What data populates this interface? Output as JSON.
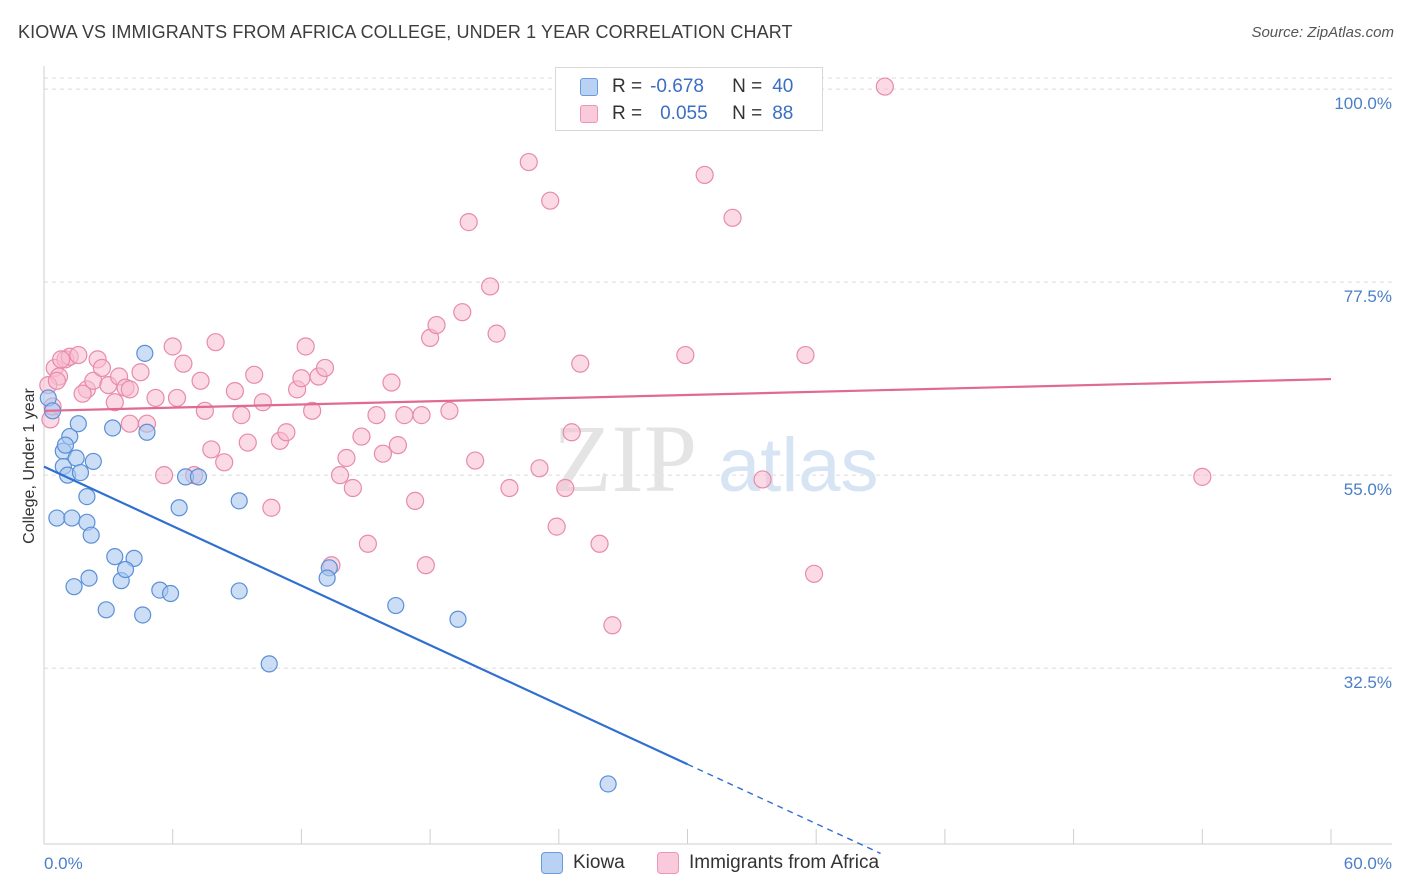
{
  "title": "KIOWA VS IMMIGRANTS FROM AFRICA COLLEGE, UNDER 1 YEAR CORRELATION CHART",
  "source": "Source: ZipAtlas.com",
  "legend": {
    "rows": [
      {
        "r_label": "R =",
        "r_value": "-0.678",
        "n_label": "N =",
        "n_value": "40"
      },
      {
        "r_label": "R =",
        "r_value": "0.055",
        "n_label": "N =",
        "n_value": "88"
      }
    ]
  },
  "bottom_legend": [
    {
      "label": "Kiowa"
    },
    {
      "label": "Immigrants from Africa"
    }
  ],
  "colors": {
    "kiowa_fill": "#a9c8f0",
    "kiowa_stroke": "#5b8fd6",
    "kiowa_line": "#2f6fd0",
    "africa_fill": "#f7bcd0",
    "africa_stroke": "#e88aab",
    "africa_line": "#e06a94",
    "axis_label": "#4a7fc7"
  },
  "chart_data": {
    "type": "scatter",
    "title": "KIOWA VS IMMIGRANTS FROM AFRICA COLLEGE, UNDER 1 YEAR CORRELATION CHART",
    "xlabel": "",
    "ylabel": "College, Under 1 year",
    "xlim": [
      0,
      60
    ],
    "ylim": [
      12,
      102
    ],
    "x_tick_labels": [
      "0.0%",
      "60.0%"
    ],
    "y_ticks": [
      32.5,
      55.0,
      77.5,
      100.0
    ],
    "y_tick_labels": [
      "32.5%",
      "55.0%",
      "77.5%",
      "100.0%"
    ],
    "grid": true,
    "watermark": "ZIPatlas",
    "series": [
      {
        "name": "Kiowa",
        "R": -0.678,
        "N": 40,
        "trend": {
          "x0": 0,
          "y0": 56.0,
          "x1": 30,
          "y1": 21.3,
          "dash_to_x": 39,
          "dash_to_y": 10.9
        },
        "points": [
          [
            0.2,
            64.0
          ],
          [
            0.4,
            62.5
          ],
          [
            0.9,
            57.8
          ],
          [
            0.9,
            56.0
          ],
          [
            1.1,
            55.0
          ],
          [
            1.2,
            59.5
          ],
          [
            1.5,
            57.0
          ],
          [
            1.6,
            61.0
          ],
          [
            1.7,
            55.3
          ],
          [
            2.0,
            52.5
          ],
          [
            2.3,
            56.6
          ],
          [
            0.6,
            50.0
          ],
          [
            1.3,
            50.0
          ],
          [
            2.0,
            49.5
          ],
          [
            2.2,
            48.0
          ],
          [
            3.2,
            60.5
          ],
          [
            3.3,
            45.5
          ],
          [
            4.2,
            45.3
          ],
          [
            4.8,
            60.0
          ],
          [
            4.7,
            69.2
          ],
          [
            1.4,
            42.0
          ],
          [
            2.1,
            43.0
          ],
          [
            3.6,
            42.7
          ],
          [
            5.4,
            41.6
          ],
          [
            5.9,
            41.2
          ],
          [
            6.6,
            54.8
          ],
          [
            7.2,
            54.8
          ],
          [
            6.3,
            51.2
          ],
          [
            9.1,
            52.0
          ],
          [
            9.1,
            41.5
          ],
          [
            2.9,
            39.3
          ],
          [
            4.6,
            38.7
          ],
          [
            10.5,
            33.0
          ],
          [
            13.3,
            44.2
          ],
          [
            13.2,
            43.0
          ],
          [
            16.4,
            39.8
          ],
          [
            19.3,
            38.2
          ],
          [
            26.3,
            19.0
          ],
          [
            1.0,
            58.5
          ],
          [
            3.8,
            44.0
          ]
        ]
      },
      {
        "name": "Immigrants from Africa",
        "R": 0.055,
        "N": 88,
        "trend": {
          "x0": 0,
          "y0": 62.5,
          "x1": 60,
          "y1": 66.2
        },
        "points": [
          [
            0.3,
            61.5
          ],
          [
            0.5,
            67.5
          ],
          [
            0.7,
            66.5
          ],
          [
            1.0,
            68.5
          ],
          [
            1.2,
            68.8
          ],
          [
            1.6,
            69.0
          ],
          [
            2.0,
            65.0
          ],
          [
            2.3,
            66.0
          ],
          [
            2.5,
            68.5
          ],
          [
            3.0,
            65.5
          ],
          [
            3.5,
            66.5
          ],
          [
            3.8,
            65.2
          ],
          [
            4.0,
            65.0
          ],
          [
            4.5,
            67.0
          ],
          [
            4.8,
            61.0
          ],
          [
            5.2,
            64.0
          ],
          [
            5.6,
            55.0
          ],
          [
            6.0,
            70.0
          ],
          [
            6.2,
            64.0
          ],
          [
            6.5,
            68.0
          ],
          [
            7.0,
            55.0
          ],
          [
            7.3,
            66.0
          ],
          [
            7.5,
            62.5
          ],
          [
            7.8,
            58.0
          ],
          [
            8.0,
            70.5
          ],
          [
            8.4,
            56.5
          ],
          [
            8.9,
            64.8
          ],
          [
            9.2,
            62.0
          ],
          [
            9.5,
            58.8
          ],
          [
            9.8,
            66.7
          ],
          [
            10.2,
            63.5
          ],
          [
            10.6,
            51.2
          ],
          [
            11.0,
            59.0
          ],
          [
            11.3,
            60.0
          ],
          [
            11.8,
            65.0
          ],
          [
            12.2,
            70.0
          ],
          [
            12.5,
            62.5
          ],
          [
            12.8,
            66.5
          ],
          [
            13.1,
            67.5
          ],
          [
            13.4,
            44.5
          ],
          [
            13.8,
            55.0
          ],
          [
            14.1,
            57.0
          ],
          [
            14.4,
            53.5
          ],
          [
            14.8,
            59.5
          ],
          [
            15.1,
            47.0
          ],
          [
            15.5,
            62.0
          ],
          [
            15.8,
            57.5
          ],
          [
            16.2,
            65.8
          ],
          [
            16.5,
            58.5
          ],
          [
            16.8,
            62.0
          ],
          [
            17.3,
            52.0
          ],
          [
            17.6,
            62.0
          ],
          [
            17.8,
            44.5
          ],
          [
            18.0,
            71.0
          ],
          [
            18.3,
            72.5
          ],
          [
            18.9,
            62.5
          ],
          [
            19.5,
            74.0
          ],
          [
            19.8,
            84.5
          ],
          [
            20.1,
            56.7
          ],
          [
            20.8,
            77.0
          ],
          [
            21.1,
            71.5
          ],
          [
            21.7,
            53.5
          ],
          [
            22.6,
            91.5
          ],
          [
            23.1,
            55.8
          ],
          [
            23.6,
            87.0
          ],
          [
            23.9,
            49.0
          ],
          [
            24.3,
            53.5
          ],
          [
            24.6,
            60.0
          ],
          [
            25.0,
            68.0
          ],
          [
            25.9,
            47.0
          ],
          [
            26.5,
            37.5
          ],
          [
            29.9,
            69.0
          ],
          [
            30.8,
            90.0
          ],
          [
            32.1,
            85.0
          ],
          [
            33.5,
            54.5
          ],
          [
            35.5,
            69.0
          ],
          [
            35.9,
            43.5
          ],
          [
            39.2,
            100.3
          ],
          [
            54.0,
            54.8
          ],
          [
            3.3,
            63.5
          ],
          [
            4.0,
            61.0
          ],
          [
            12.0,
            66.3
          ],
          [
            1.8,
            64.5
          ],
          [
            0.8,
            68.5
          ],
          [
            2.7,
            67.5
          ],
          [
            0.2,
            65.5
          ],
          [
            0.4,
            63.0
          ],
          [
            0.6,
            66.0
          ]
        ]
      }
    ]
  }
}
